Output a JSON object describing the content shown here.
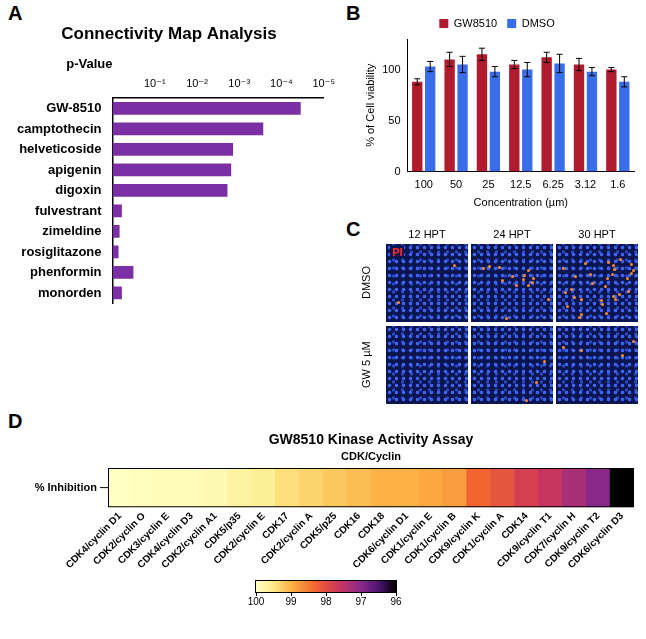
{
  "chart_data": [
    {
      "panel": "A",
      "type": "bar",
      "orientation": "horizontal",
      "title": "Connectivity Map Analysis",
      "x_label": "p-Value",
      "log": "x",
      "categories": [
        "GW-8510",
        "camptothecin",
        "helveticoside",
        "apigenin",
        "digoxin",
        "fulvestrant",
        "zimeldine",
        "rosiglitazone",
        "phenformin",
        "monorden"
      ],
      "values": [
        3.5e-05,
        0.00027,
        0.0014,
        0.00155,
        0.0019,
        0.6,
        0.68,
        0.72,
        0.32,
        0.6
      ],
      "color": "#7b2fa5",
      "xlim": [
        1,
        1e-05
      ],
      "xticks": [
        {
          "value": 0.1,
          "label": "10⁻¹"
        },
        {
          "value": 0.01,
          "label": "10⁻²"
        },
        {
          "value": 0.001,
          "label": "10⁻³"
        },
        {
          "value": 0.0001,
          "label": "10⁻⁴"
        },
        {
          "value": 1e-05,
          "label": "10⁻⁵"
        }
      ],
      "grid": false
    },
    {
      "panel": "B",
      "type": "bar",
      "y_label": "% of Cell viability",
      "x_label": "Concentration (µm)",
      "categories": [
        "100",
        "50",
        "25",
        "12.5",
        "6.25",
        "3.12",
        "1.6"
      ],
      "series": [
        {
          "name": "GW8510",
          "color": "#b01c2e",
          "values": [
            88,
            110,
            115,
            105,
            112,
            105,
            100
          ],
          "errors": [
            3,
            7,
            6,
            4,
            5,
            6,
            2
          ]
        },
        {
          "name": "DMSO",
          "color": "#3a6ee8",
          "values": [
            103,
            105,
            98,
            100,
            106,
            98,
            88
          ],
          "errors": [
            5,
            8,
            5,
            7,
            9,
            4,
            5
          ]
        }
      ],
      "ylim": [
        0,
        130
      ],
      "yticks": [
        0,
        50,
        100
      ],
      "legend": "top",
      "grid": false
    },
    {
      "panel": "D",
      "type": "heatmap",
      "title": "GW8510 Kinase Activity Assay",
      "subtitle": "CDK/Cyclin",
      "rows": [
        "% Inhibition"
      ],
      "categories": [
        "CDK4/cyclin D1",
        "CDK2/cyclin O",
        "CDK3/cyclin E",
        "CDK4/cyclin D3",
        "CDK2/cyclin A1",
        "CDK5/p35",
        "CDK2/cyclin E",
        "CDK17",
        "CDK2/cyclin A",
        "CDK5/p25",
        "CDK16",
        "CDK18",
        "CDK6/cyclin D1",
        "CDK1/cyclin E",
        "CDK1/cyclin B",
        "CDK9/cyclin K",
        "CDK1/cyclin A",
        "CDK14",
        "CDK9/cyclin T1",
        "CDK7/cyclin H",
        "CDK9/cyclin T2",
        "CDK6/cyclin D3"
      ],
      "values": [
        100,
        99.95,
        99.9,
        99.9,
        99.85,
        99.7,
        99.6,
        99.4,
        99.3,
        99.2,
        99.1,
        99.0,
        99.0,
        98.9,
        98.8,
        98.3,
        98.1,
        97.8,
        97.6,
        97.3,
        97.0,
        96.0
      ],
      "colorbar_range": [
        100,
        96
      ],
      "colorbar_ticks": [
        100,
        99,
        98,
        97,
        96
      ]
    }
  ],
  "image_panel": {
    "panel": "C",
    "columns": [
      "12 HPT",
      "24 HPT",
      "30 HPT"
    ],
    "rows": [
      "DMSO",
      "GW 5 µM"
    ],
    "stain_label": "PI"
  }
}
